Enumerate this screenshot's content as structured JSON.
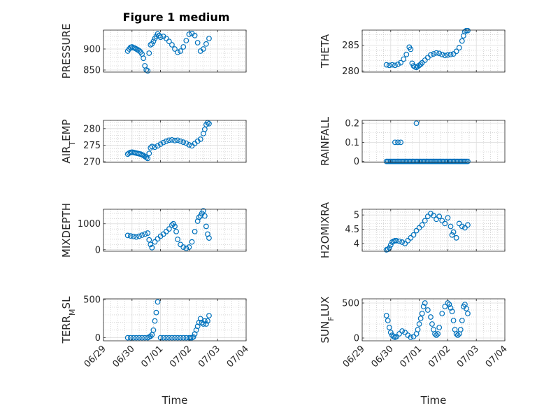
{
  "figure_title": "Figure 1 medium",
  "colors": {
    "marker": "#0072BD",
    "axis": "#262626",
    "grid": "#bfbfbf",
    "background": "#ffffff"
  },
  "x_axis": {
    "label": "Time",
    "ticks": [
      "06/29",
      "06/30",
      "07/01",
      "07/02",
      "07/03",
      "07/04"
    ],
    "range": [
      "06/29",
      "07/04"
    ]
  },
  "chart_data": [
    {
      "type": "scatter",
      "ylabel": "PRESSURE",
      "yticks": [
        "850",
        "900"
      ],
      "ylim": [
        845,
        945
      ],
      "x": [
        0.85,
        0.9,
        0.95,
        1.0,
        1.05,
        1.1,
        1.15,
        1.2,
        1.25,
        1.3,
        1.35,
        1.4,
        1.45,
        1.5,
        1.55,
        1.6,
        1.65,
        1.7,
        1.75,
        1.8,
        1.85,
        1.9,
        1.95,
        2.0,
        2.1,
        2.2,
        2.3,
        2.4,
        2.5,
        2.6,
        2.7,
        2.8,
        2.9,
        3.0,
        3.1,
        3.2,
        3.3,
        3.4,
        3.5,
        3.6,
        3.7
      ],
      "y": [
        895,
        900,
        904,
        905,
        903,
        902,
        900,
        898,
        896,
        893,
        888,
        878,
        860,
        850,
        848,
        890,
        910,
        912,
        918,
        925,
        930,
        936,
        932,
        928,
        930,
        925,
        918,
        910,
        900,
        892,
        895,
        905,
        920,
        935,
        937,
        932,
        915,
        895,
        900,
        912,
        925
      ]
    },
    {
      "type": "scatter",
      "ylabel": "THETA",
      "yticks": [
        "280",
        "285"
      ],
      "ylim": [
        279.8,
        287.9
      ],
      "x": [
        0.85,
        0.95,
        1.05,
        1.15,
        1.25,
        1.35,
        1.45,
        1.55,
        1.65,
        1.7,
        1.75,
        1.8,
        1.85,
        1.9,
        1.95,
        2.0,
        2.05,
        2.1,
        2.2,
        2.3,
        2.4,
        2.5,
        2.6,
        2.7,
        2.8,
        2.9,
        3.0,
        3.1,
        3.2,
        3.3,
        3.4,
        3.5,
        3.55,
        3.6,
        3.65,
        3.7
      ],
      "y": [
        281.2,
        281.1,
        281.2,
        281.1,
        281.3,
        281.6,
        282.3,
        283.2,
        284.6,
        284.2,
        281.5,
        281.0,
        280.8,
        280.7,
        280.9,
        281.1,
        281.3,
        281.6,
        282.1,
        282.6,
        283.1,
        283.3,
        283.5,
        283.4,
        283.2,
        283.0,
        283.1,
        283.2,
        283.3,
        283.8,
        284.5,
        285.8,
        286.8,
        287.6,
        287.8,
        287.8
      ]
    },
    {
      "type": "scatter",
      "ylabel": "AIR_TEMP",
      "yticks": [
        "270",
        "275",
        "280"
      ],
      "ylim": [
        269.8,
        282.5
      ],
      "x": [
        0.85,
        0.9,
        0.95,
        1.0,
        1.05,
        1.1,
        1.15,
        1.2,
        1.25,
        1.3,
        1.35,
        1.4,
        1.45,
        1.5,
        1.55,
        1.6,
        1.65,
        1.7,
        1.8,
        1.9,
        2.0,
        2.1,
        2.2,
        2.3,
        2.4,
        2.5,
        2.6,
        2.7,
        2.8,
        2.9,
        3.0,
        3.1,
        3.2,
        3.3,
        3.4,
        3.5,
        3.55,
        3.6,
        3.65,
        3.7
      ],
      "y": [
        272.3,
        272.6,
        272.8,
        272.9,
        272.8,
        272.7,
        272.6,
        272.5,
        272.4,
        272.3,
        272.1,
        271.9,
        271.6,
        271.3,
        271.0,
        272.5,
        274.2,
        274.6,
        274.4,
        274.8,
        275.3,
        275.8,
        276.2,
        276.5,
        276.6,
        276.4,
        276.5,
        276.2,
        275.9,
        275.6,
        275.1,
        274.8,
        275.5,
        276.2,
        276.8,
        278.5,
        279.8,
        281.2,
        281.8,
        281.5
      ]
    },
    {
      "type": "scatter",
      "ylabel": "RAINFALL",
      "yticks": [
        "0",
        "0.1",
        "0.2"
      ],
      "ylim": [
        -0.005,
        0.215
      ],
      "x": [
        0.85,
        0.9,
        0.95,
        1.0,
        1.05,
        1.1,
        1.15,
        1.2,
        1.25,
        1.3,
        1.35,
        1.4,
        1.45,
        1.5,
        1.55,
        1.6,
        1.65,
        1.7,
        1.75,
        1.8,
        1.85,
        1.9,
        1.95,
        2.0,
        2.05,
        2.1,
        2.15,
        2.2,
        2.25,
        2.3,
        2.35,
        2.4,
        2.45,
        2.5,
        2.55,
        2.6,
        2.65,
        2.7,
        2.75,
        2.8,
        2.85,
        2.9,
        2.95,
        3.0,
        3.05,
        3.1,
        3.15,
        3.2,
        3.25,
        3.3,
        3.35,
        3.4,
        3.45,
        3.5,
        3.55,
        3.6,
        3.65,
        3.7,
        1.15,
        1.25,
        1.35,
        1.9
      ],
      "y": [
        0,
        0,
        0,
        0,
        0,
        0,
        0,
        0,
        0,
        0,
        0,
        0,
        0,
        0,
        0,
        0,
        0,
        0,
        0,
        0,
        0,
        0,
        0,
        0,
        0,
        0,
        0,
        0,
        0,
        0,
        0,
        0,
        0,
        0,
        0,
        0,
        0,
        0,
        0,
        0,
        0,
        0,
        0,
        0,
        0,
        0,
        0,
        0,
        0,
        0,
        0,
        0,
        0,
        0,
        0,
        0,
        0,
        0,
        0.1,
        0.1,
        0.1,
        0.2
      ]
    },
    {
      "type": "scatter",
      "ylabel": "MIXDEPTH",
      "yticks": [
        "0",
        "1000"
      ],
      "ylim": [
        -60,
        1560
      ],
      "x": [
        0.85,
        0.95,
        1.05,
        1.15,
        1.25,
        1.35,
        1.45,
        1.55,
        1.6,
        1.65,
        1.7,
        1.8,
        1.9,
        2.0,
        2.1,
        2.2,
        2.3,
        2.4,
        2.45,
        2.5,
        2.55,
        2.6,
        2.7,
        2.8,
        2.9,
        3.0,
        3.1,
        3.2,
        3.3,
        3.35,
        3.4,
        3.45,
        3.5,
        3.55,
        3.6,
        3.65,
        3.7
      ],
      "y": [
        550,
        530,
        510,
        490,
        520,
        560,
        600,
        640,
        380,
        200,
        80,
        300,
        420,
        520,
        600,
        700,
        800,
        950,
        1000,
        900,
        700,
        400,
        200,
        100,
        50,
        100,
        300,
        700,
        1100,
        1250,
        1300,
        1400,
        1500,
        1300,
        900,
        600,
        450
      ]
    },
    {
      "type": "scatter",
      "ylabel": "H2OMIXRA",
      "yticks": [
        "4",
        "4.5",
        "5"
      ],
      "ylim": [
        3.73,
        5.2
      ],
      "x": [
        0.85,
        0.9,
        0.95,
        1.0,
        1.05,
        1.1,
        1.15,
        1.2,
        1.3,
        1.4,
        1.5,
        1.6,
        1.7,
        1.8,
        1.9,
        2.0,
        2.1,
        2.2,
        2.3,
        2.4,
        2.5,
        2.6,
        2.7,
        2.8,
        2.9,
        3.0,
        3.1,
        3.15,
        3.2,
        3.3,
        3.4,
        3.5,
        3.6,
        3.7
      ],
      "y": [
        3.78,
        3.8,
        3.85,
        3.95,
        4.05,
        4.08,
        4.1,
        4.1,
        4.08,
        4.05,
        4.0,
        4.1,
        4.2,
        4.3,
        4.45,
        4.55,
        4.65,
        4.8,
        4.95,
        5.05,
        4.98,
        4.85,
        4.95,
        4.8,
        4.7,
        4.9,
        4.6,
        4.3,
        4.4,
        4.2,
        4.7,
        4.6,
        4.55,
        4.65
      ]
    },
    {
      "type": "scatter",
      "ylabel": "TERR_MSL",
      "yticks": [
        "0",
        "500"
      ],
      "ylim": [
        -40,
        510
      ],
      "x": [
        0.85,
        0.95,
        1.05,
        1.15,
        1.25,
        1.35,
        1.45,
        1.55,
        1.6,
        1.65,
        1.7,
        1.75,
        1.8,
        1.85,
        1.9,
        2.0,
        2.1,
        2.2,
        2.3,
        2.4,
        2.5,
        2.6,
        2.7,
        2.8,
        2.9,
        3.0,
        3.05,
        3.1,
        3.15,
        3.2,
        3.25,
        3.3,
        3.35,
        3.4,
        3.45,
        3.5,
        3.55,
        3.6,
        3.65,
        3.7
      ],
      "y": [
        0,
        0,
        0,
        0,
        0,
        0,
        0,
        0,
        10,
        20,
        40,
        100,
        220,
        330,
        470,
        0,
        0,
        0,
        0,
        0,
        0,
        0,
        0,
        0,
        0,
        0,
        0,
        0,
        10,
        50,
        100,
        150,
        200,
        250,
        200,
        180,
        220,
        180,
        220,
        290
      ]
    },
    {
      "type": "scatter",
      "ylabel": "SUN_FLUX",
      "yticks": [
        "0",
        "500"
      ],
      "ylim": [
        -40,
        560
      ],
      "x": [
        0.85,
        0.9,
        0.95,
        1.0,
        1.05,
        1.1,
        1.15,
        1.2,
        1.3,
        1.4,
        1.5,
        1.6,
        1.7,
        1.8,
        1.9,
        1.95,
        2.0,
        2.05,
        2.1,
        2.15,
        2.2,
        2.3,
        2.4,
        2.45,
        2.5,
        2.55,
        2.6,
        2.65,
        2.7,
        2.8,
        2.9,
        3.0,
        3.05,
        3.1,
        3.15,
        3.2,
        3.25,
        3.3,
        3.35,
        3.4,
        3.45,
        3.5,
        3.55,
        3.6,
        3.65,
        3.7
      ],
      "y": [
        320,
        250,
        150,
        80,
        40,
        20,
        10,
        20,
        60,
        100,
        80,
        40,
        10,
        20,
        60,
        120,
        200,
        280,
        350,
        450,
        500,
        400,
        300,
        200,
        120,
        60,
        40,
        60,
        150,
        350,
        450,
        500,
        480,
        430,
        380,
        250,
        120,
        60,
        40,
        60,
        120,
        250,
        450,
        480,
        420,
        350
      ]
    }
  ]
}
